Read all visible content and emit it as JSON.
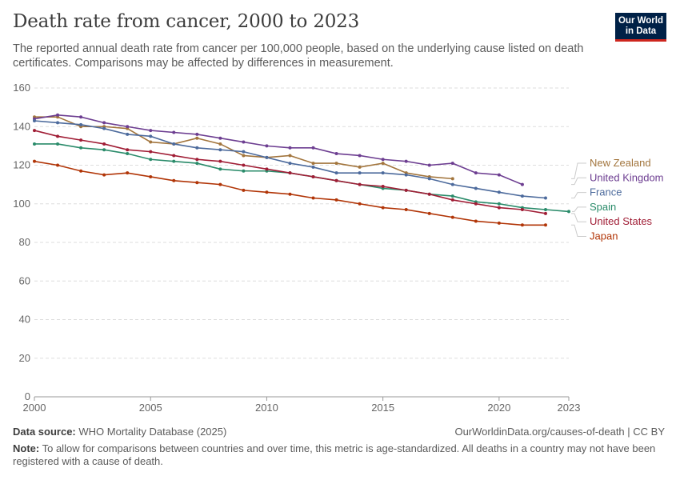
{
  "header": {
    "title": "Death rate from cancer, 2000 to 2023",
    "subtitle": "The reported annual death rate from cancer per 100,000 people, based on the underlying cause listed on death certificates. Comparisons may be affected by differences in measurement.",
    "logo_line1": "Our World",
    "logo_line2": "in Data"
  },
  "footer": {
    "source_label": "Data source:",
    "source_text": "WHO Mortality Database (2025)",
    "url": "OurWorldinData.org/causes-of-death | CC BY",
    "note_label": "Note:",
    "note_text": "To allow for comparisons between countries and over time, this metric is age-standardized. All deaths in a country may not have been registered with a cause of death."
  },
  "chart_data": {
    "type": "line",
    "title": "Death rate from cancer, 2000 to 2023",
    "xlim": [
      2000,
      2023
    ],
    "ylim": [
      0,
      160
    ],
    "x_ticks": [
      2000,
      2005,
      2010,
      2015,
      2020,
      2023
    ],
    "y_ticks": [
      0,
      20,
      40,
      60,
      80,
      100,
      120,
      140,
      160
    ],
    "grid": true,
    "legend_placement": "right",
    "series": [
      {
        "name": "New Zealand",
        "color": "#a2753d",
        "x": [
          2000,
          2001,
          2002,
          2003,
          2004,
          2005,
          2006,
          2007,
          2008,
          2009,
          2010,
          2011,
          2012,
          2013,
          2014,
          2015,
          2016,
          2017,
          2018
        ],
        "y": [
          145,
          145,
          140,
          140,
          139,
          132,
          131,
          134,
          131,
          125,
          124,
          125,
          121,
          121,
          119,
          121,
          116,
          114,
          113
        ]
      },
      {
        "name": "United Kingdom",
        "color": "#6d3e91",
        "x": [
          2000,
          2001,
          2002,
          2003,
          2004,
          2005,
          2006,
          2007,
          2008,
          2009,
          2010,
          2011,
          2012,
          2013,
          2014,
          2015,
          2016,
          2017,
          2018,
          2019,
          2020,
          2021
        ],
        "y": [
          144,
          146,
          145,
          142,
          140,
          138,
          137,
          136,
          134,
          132,
          130,
          129,
          129,
          126,
          125,
          123,
          122,
          120,
          121,
          116,
          115,
          110
        ]
      },
      {
        "name": "France",
        "color": "#4c6a9c",
        "x": [
          2000,
          2001,
          2002,
          2003,
          2004,
          2005,
          2006,
          2007,
          2008,
          2009,
          2010,
          2011,
          2012,
          2013,
          2014,
          2015,
          2016,
          2017,
          2018,
          2019,
          2020,
          2021,
          2022
        ],
        "y": [
          143,
          142,
          141,
          139,
          136,
          135,
          131,
          129,
          128,
          127,
          124,
          121,
          119,
          116,
          116,
          116,
          115,
          113,
          110,
          108,
          106,
          104,
          103
        ]
      },
      {
        "name": "Spain",
        "color": "#2a8b6a",
        "x": [
          2000,
          2001,
          2002,
          2003,
          2004,
          2005,
          2006,
          2007,
          2008,
          2009,
          2010,
          2011,
          2012,
          2013,
          2014,
          2015,
          2016,
          2017,
          2018,
          2019,
          2020,
          2021,
          2022,
          2023
        ],
        "y": [
          131,
          131,
          129,
          128,
          126,
          123,
          122,
          121,
          118,
          117,
          117,
          116,
          114,
          112,
          110,
          108,
          107,
          105,
          104,
          101,
          100,
          98,
          97,
          96
        ]
      },
      {
        "name": "United States",
        "color": "#a01d35",
        "x": [
          2000,
          2001,
          2002,
          2003,
          2004,
          2005,
          2006,
          2007,
          2008,
          2009,
          2010,
          2011,
          2012,
          2013,
          2014,
          2015,
          2016,
          2017,
          2018,
          2019,
          2020,
          2021,
          2022
        ],
        "y": [
          138,
          135,
          133,
          131,
          128,
          127,
          125,
          123,
          122,
          120,
          118,
          116,
          114,
          112,
          110,
          109,
          107,
          105,
          102,
          100,
          98,
          97,
          95
        ]
      },
      {
        "name": "Japan",
        "color": "#b13507",
        "x": [
          2000,
          2001,
          2002,
          2003,
          2004,
          2005,
          2006,
          2007,
          2008,
          2009,
          2010,
          2011,
          2012,
          2013,
          2014,
          2015,
          2016,
          2017,
          2018,
          2019,
          2020,
          2021,
          2022
        ],
        "y": [
          122,
          120,
          117,
          115,
          116,
          114,
          112,
          111,
          110,
          107,
          106,
          105,
          103,
          102,
          100,
          98,
          97,
          95,
          93,
          91,
          90,
          89,
          89
        ]
      }
    ]
  }
}
